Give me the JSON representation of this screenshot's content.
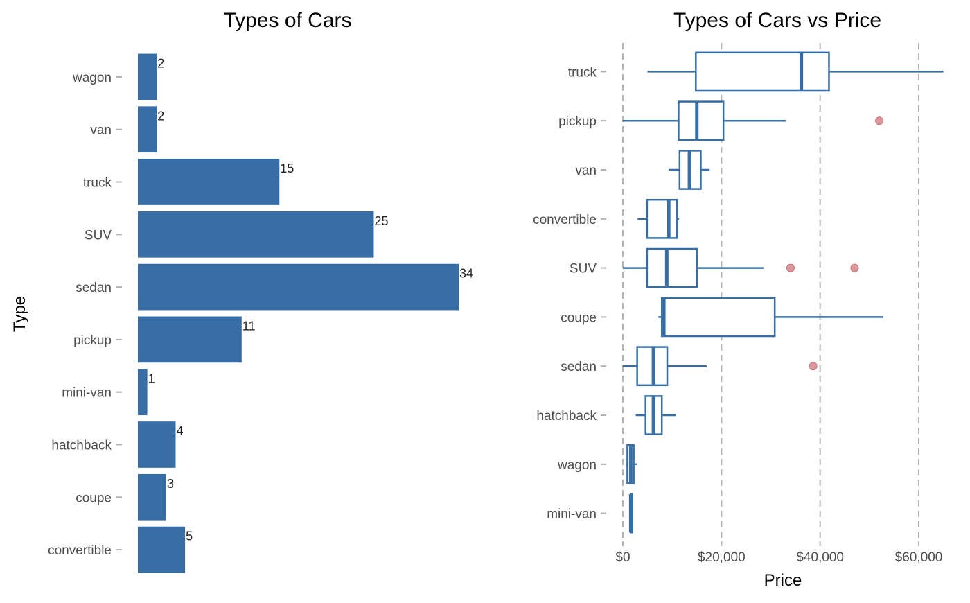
{
  "colors": {
    "bar": "#386ea6",
    "box_stroke": "#386ea6",
    "outlier": "#d4868b",
    "grid": "#b3b3b3",
    "tick": "#b3b3b3"
  },
  "chart_data": [
    {
      "type": "bar",
      "orientation": "horizontal",
      "title": "Types of Cars",
      "xlabel": "",
      "ylabel": "Type",
      "categories": [
        "wagon",
        "van",
        "truck",
        "SUV",
        "sedan",
        "pickup",
        "mini-van",
        "hatchback",
        "coupe",
        "convertible"
      ],
      "values": [
        2,
        2,
        15,
        25,
        34,
        11,
        1,
        4,
        3,
        5
      ],
      "data_labels": [
        "2",
        "2",
        "15",
        "25",
        "34",
        "11",
        "1",
        "4",
        "3",
        "5"
      ],
      "xlim": [
        0,
        34
      ],
      "grid": false
    },
    {
      "type": "boxplot",
      "orientation": "horizontal",
      "title": "Types of Cars vs Price",
      "xlabel": "Price",
      "ylabel": "",
      "xlim": [
        0,
        65000
      ],
      "xticks": [
        0,
        20000,
        40000,
        60000
      ],
      "xtick_labels": [
        "$0",
        "$20,000",
        "$40,000",
        "$60,000"
      ],
      "grid": "vertical dashed",
      "categories": [
        "truck",
        "pickup",
        "van",
        "convertible",
        "SUV",
        "coupe",
        "sedan",
        "hatchback",
        "wagon",
        "mini-van"
      ],
      "boxes": [
        {
          "category": "truck",
          "whisker_low": 5000,
          "q1": 14800,
          "median": 36200,
          "q3": 41800,
          "whisker_high": 65000,
          "outliers": []
        },
        {
          "category": "pickup",
          "whisker_low": 0,
          "q1": 11300,
          "median": 15000,
          "q3": 20400,
          "whisker_high": 33000,
          "outliers": [
            52000
          ]
        },
        {
          "category": "van",
          "whisker_low": 9300,
          "q1": 11500,
          "median": 13500,
          "q3": 15800,
          "whisker_high": 17600,
          "outliers": []
        },
        {
          "category": "convertible",
          "whisker_low": 3000,
          "q1": 4900,
          "median": 9300,
          "q3": 11000,
          "whisker_high": 11400,
          "outliers": []
        },
        {
          "category": "SUV",
          "whisker_low": 0,
          "q1": 4900,
          "median": 8900,
          "q3": 15000,
          "whisker_high": 28500,
          "outliers": [
            34000,
            47000
          ]
        },
        {
          "category": "coupe",
          "whisker_low": 7200,
          "q1": 7900,
          "median": 8300,
          "q3": 30800,
          "whisker_high": 52800,
          "outliers": []
        },
        {
          "category": "sedan",
          "whisker_low": 0,
          "q1": 2900,
          "median": 6200,
          "q3": 9000,
          "whisker_high": 17000,
          "outliers": [
            38600
          ]
        },
        {
          "category": "hatchback",
          "whisker_low": 2600,
          "q1": 4600,
          "median": 6200,
          "q3": 7900,
          "whisker_high": 10800,
          "outliers": []
        },
        {
          "category": "wagon",
          "whisker_low": 700,
          "q1": 900,
          "median": 1600,
          "q3": 2200,
          "whisker_high": 2800,
          "outliers": []
        },
        {
          "category": "mini-van",
          "whisker_low": 1600,
          "q1": 1600,
          "median": 1600,
          "q3": 1600,
          "whisker_high": 1600,
          "outliers": []
        }
      ]
    }
  ]
}
